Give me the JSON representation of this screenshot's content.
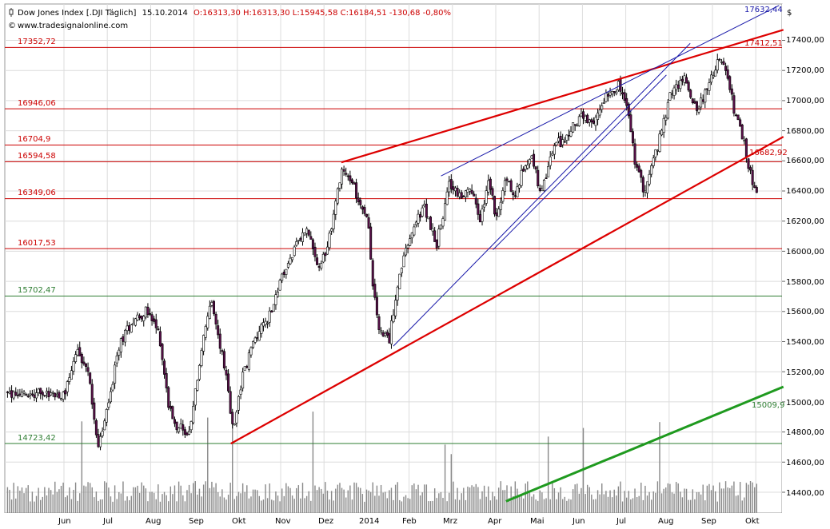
{
  "header": {
    "instrument": "Dow Jones Index [.DJI  Täglich]",
    "date": "15.10.2014",
    "quote": "O:16313,30 H:16313,30 L:15945,58 C:16184,51 -130,68 -0,80%",
    "source": "www.tradesignalonline.com",
    "currency": "$"
  },
  "colors": {
    "level_red": "#cc0000",
    "level_green": "#2e7d32",
    "trend_red": "#dd0000",
    "trend_blue": "#1a1aaa",
    "trend_green": "#1f9a1f",
    "candle_up": "#ffffff",
    "candle_down": "#5a0f4a",
    "volume": "#888888",
    "grid": "#dcdcdc"
  },
  "chart_data": {
    "type": "candlestick",
    "title": "Dow Jones Index [.DJI  Täglich]",
    "x_tick_labels": [
      "Jun",
      "Jul",
      "Aug",
      "Sep",
      "Okt",
      "Nov",
      "Dez",
      "2014",
      "Feb",
      "Mrz",
      "Apr",
      "Mai",
      "Jun",
      "Jul",
      "Aug",
      "Sep",
      "Okt"
    ],
    "y_tick_labels": [
      "17400,00",
      "17200,00",
      "17000,00",
      "16800,00",
      "16600,00",
      "16400,00",
      "16200,00",
      "16000,00",
      "15800,00",
      "15600,00",
      "15400,00",
      "15200,00",
      "15000,00",
      "14800,00",
      "14600,00",
      "14400,00"
    ],
    "ylim": [
      14305,
      17680
    ],
    "horizontal_levels": [
      {
        "value": 17352.72,
        "label": "17352,72",
        "color": "red"
      },
      {
        "value": 16946.06,
        "label": "16946,06",
        "color": "red"
      },
      {
        "value": 16704.9,
        "label": "16704,9",
        "color": "red"
      },
      {
        "value": 16594.58,
        "label": "16594,58",
        "color": "red"
      },
      {
        "value": 16349.06,
        "label": "16349,06",
        "color": "red"
      },
      {
        "value": 16017.53,
        "label": "16017,53",
        "color": "red"
      },
      {
        "value": 15702.47,
        "label": "15702,47",
        "color": "green"
      },
      {
        "value": 14723.42,
        "label": "14723,42",
        "color": "green"
      }
    ],
    "trendline_labels": [
      {
        "label": "17632,44",
        "color": "blue"
      },
      {
        "label": "17412,51",
        "color": "red"
      },
      {
        "label": "16682,92",
        "color": "red"
      },
      {
        "label": "15009,9",
        "color": "green"
      }
    ],
    "price_path": {
      "x_month_pos": [
        0,
        0.3,
        0.55,
        0.8,
        1.0,
        1.3,
        1.6,
        1.9,
        2.2,
        2.4,
        2.6,
        2.9,
        3.0,
        3.2,
        3.4,
        3.7,
        3.9,
        4.1,
        4.4,
        4.7,
        5.0,
        5.3,
        5.6,
        5.9,
        6.2,
        6.4,
        6.6,
        6.8,
        7.0,
        7.15,
        7.3,
        7.5,
        7.7,
        8.0,
        8.3,
        8.6,
        8.9,
        9.2,
        9.4,
        9.6,
        9.8,
        10.0,
        10.2,
        10.4,
        10.6,
        10.8,
        11.0,
        11.3,
        11.6,
        11.9,
        12.2,
        12.5,
        12.8,
        13.0,
        13.2,
        13.4,
        13.6,
        13.8,
        14.0,
        14.3,
        14.6,
        14.9,
        15.1,
        15.3,
        15.5,
        15.7,
        15.85,
        16.0,
        16.1,
        16.2
      ],
      "close": [
        15050,
        15350,
        15200,
        14700,
        14950,
        15400,
        15550,
        15600,
        15450,
        15000,
        14850,
        14780,
        15000,
        15400,
        15650,
        15250,
        14800,
        15150,
        15420,
        15550,
        15800,
        16000,
        16150,
        15850,
        16200,
        16550,
        16480,
        16350,
        16250,
        15700,
        15450,
        15400,
        15800,
        16100,
        16300,
        16050,
        16450,
        16350,
        16400,
        16200,
        16450,
        16200,
        16500,
        16350,
        16550,
        16650,
        16350,
        16700,
        16750,
        16900,
        16820,
        17050,
        17100,
        16950,
        16550,
        16400,
        16600,
        16800,
        17050,
        17150,
        16950,
        17100,
        17300,
        17150,
        16900,
        16700,
        16500,
        16350,
        16250,
        16184.51
      ]
    },
    "volume_note": "daily volume bars"
  }
}
